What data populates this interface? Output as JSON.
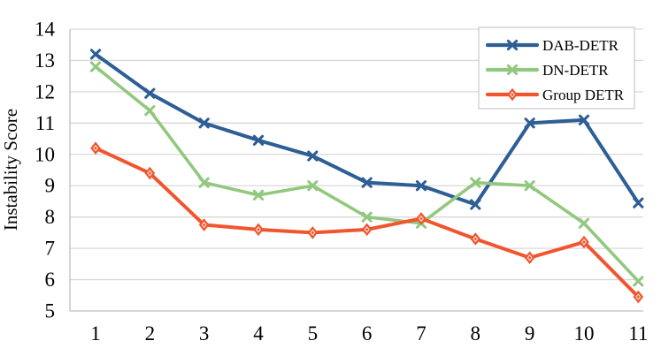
{
  "chart_data": {
    "type": "line",
    "x": [
      1,
      2,
      3,
      4,
      5,
      6,
      7,
      8,
      9,
      10,
      11
    ],
    "series": [
      {
        "name": "DAB-DETR",
        "color": "#2E5E96",
        "marker": "x",
        "values": [
          13.2,
          11.95,
          11.0,
          10.45,
          9.95,
          9.1,
          9.0,
          8.4,
          11.0,
          11.1,
          8.45
        ]
      },
      {
        "name": "DN-DETR",
        "color": "#92C87E",
        "marker": "x",
        "values": [
          12.8,
          11.4,
          9.1,
          8.7,
          9.0,
          8.0,
          7.8,
          9.1,
          9.0,
          7.8,
          5.95
        ]
      },
      {
        "name": "Group DETR",
        "color": "#F1552D",
        "marker": "diamond",
        "values": [
          10.2,
          9.4,
          7.75,
          7.6,
          7.5,
          7.6,
          7.95,
          7.3,
          6.7,
          7.2,
          5.45
        ]
      }
    ],
    "title": "",
    "xlabel": "",
    "ylabel": "Instability Score",
    "ylim": [
      5,
      14
    ],
    "yticks": [
      "5",
      "6",
      "7",
      "8",
      "9",
      "10",
      "11",
      "12",
      "13",
      "14"
    ],
    "xticks": [
      "1",
      "2",
      "3",
      "4",
      "5",
      "6",
      "7",
      "8",
      "9",
      "10",
      "11"
    ],
    "grid": "horizontal",
    "legend_position": "top-right",
    "colors": {
      "gridline": "#D9D9D9",
      "axis": "#BFBFBF",
      "text": "#000000",
      "legend_border": "#C9C9C9",
      "background": "#FFFFFF"
    }
  }
}
